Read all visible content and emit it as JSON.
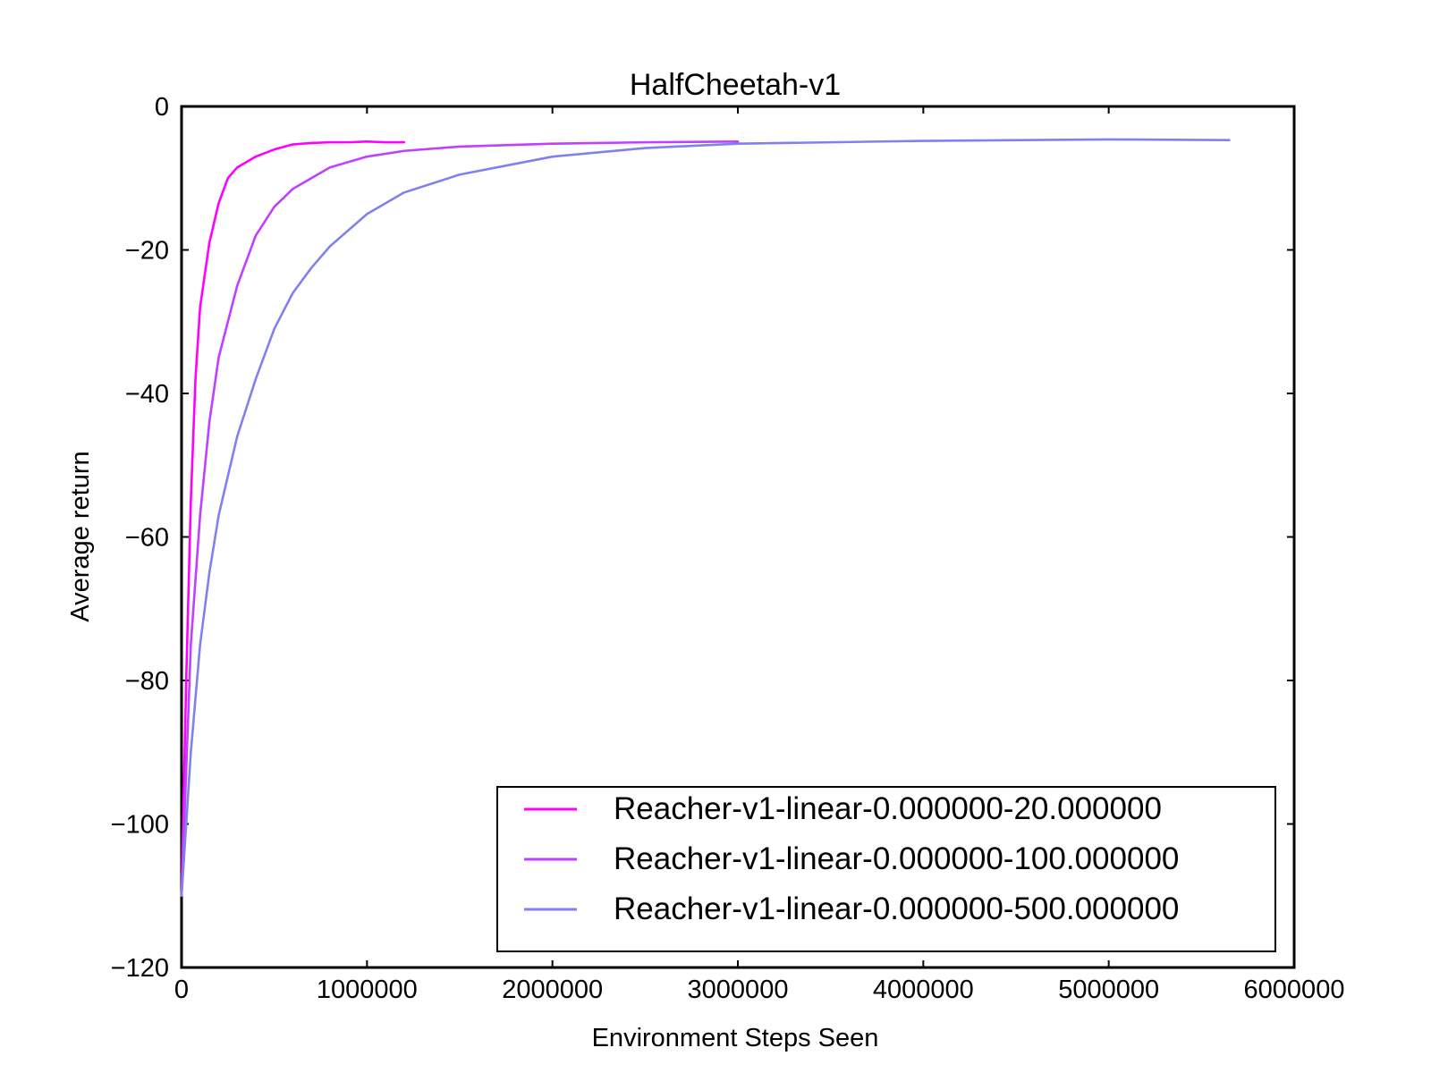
{
  "chart_data": {
    "type": "line",
    "title": "HalfCheetah-v1",
    "xlabel": "Environment Steps Seen",
    "ylabel": "Average return",
    "xlim": [
      0,
      6000000
    ],
    "ylim": [
      -120,
      0
    ],
    "xticks": [
      0,
      1000000,
      2000000,
      3000000,
      4000000,
      5000000,
      6000000
    ],
    "xtick_labels": [
      "0",
      "1000000",
      "2000000",
      "3000000",
      "4000000",
      "5000000",
      "6000000"
    ],
    "yticks": [
      0,
      -20,
      -40,
      -60,
      -80,
      -100,
      -120
    ],
    "ytick_labels": [
      "0",
      "−20",
      "−40",
      "−60",
      "−80",
      "−100",
      "−120"
    ],
    "grid": false,
    "legend_position": "lower-right",
    "series": [
      {
        "name": "Reacher-v1-linear-0.000000-20.000000",
        "color": "#ff00ff",
        "x": [
          0,
          25000,
          50000,
          75000,
          100000,
          150000,
          200000,
          250000,
          300000,
          400000,
          500000,
          600000,
          700000,
          800000,
          900000,
          1000000,
          1100000,
          1200000
        ],
        "y": [
          -110,
          -80,
          -55,
          -38,
          -28,
          -19,
          -13.5,
          -10,
          -8.5,
          -7,
          -6,
          -5.3,
          -5.1,
          -5.0,
          -5.0,
          -4.9,
          -5.0,
          -5.0
        ]
      },
      {
        "name": "Reacher-v1-linear-0.000000-100.000000",
        "color": "#bf40ff",
        "x": [
          0,
          50000,
          100000,
          150000,
          200000,
          300000,
          400000,
          500000,
          600000,
          800000,
          1000000,
          1200000,
          1500000,
          2000000,
          2500000,
          3000000
        ],
        "y": [
          -110,
          -75,
          -57,
          -44,
          -35,
          -25,
          -18,
          -14,
          -11.5,
          -8.5,
          -7,
          -6.2,
          -5.6,
          -5.2,
          -5.0,
          -4.9
        ]
      },
      {
        "name": "Reacher-v1-linear-0.000000-500.000000",
        "color": "#8080f0",
        "x": [
          0,
          50000,
          100000,
          150000,
          200000,
          300000,
          400000,
          500000,
          600000,
          700000,
          800000,
          1000000,
          1200000,
          1500000,
          2000000,
          2500000,
          3000000,
          4000000,
          5000000,
          5650000
        ],
        "y": [
          -110,
          -90,
          -75,
          -65,
          -57,
          -46,
          -38,
          -31,
          -26,
          -22.5,
          -19.5,
          -15,
          -12,
          -9.5,
          -7,
          -5.8,
          -5.2,
          -4.8,
          -4.6,
          -4.7
        ]
      }
    ]
  }
}
